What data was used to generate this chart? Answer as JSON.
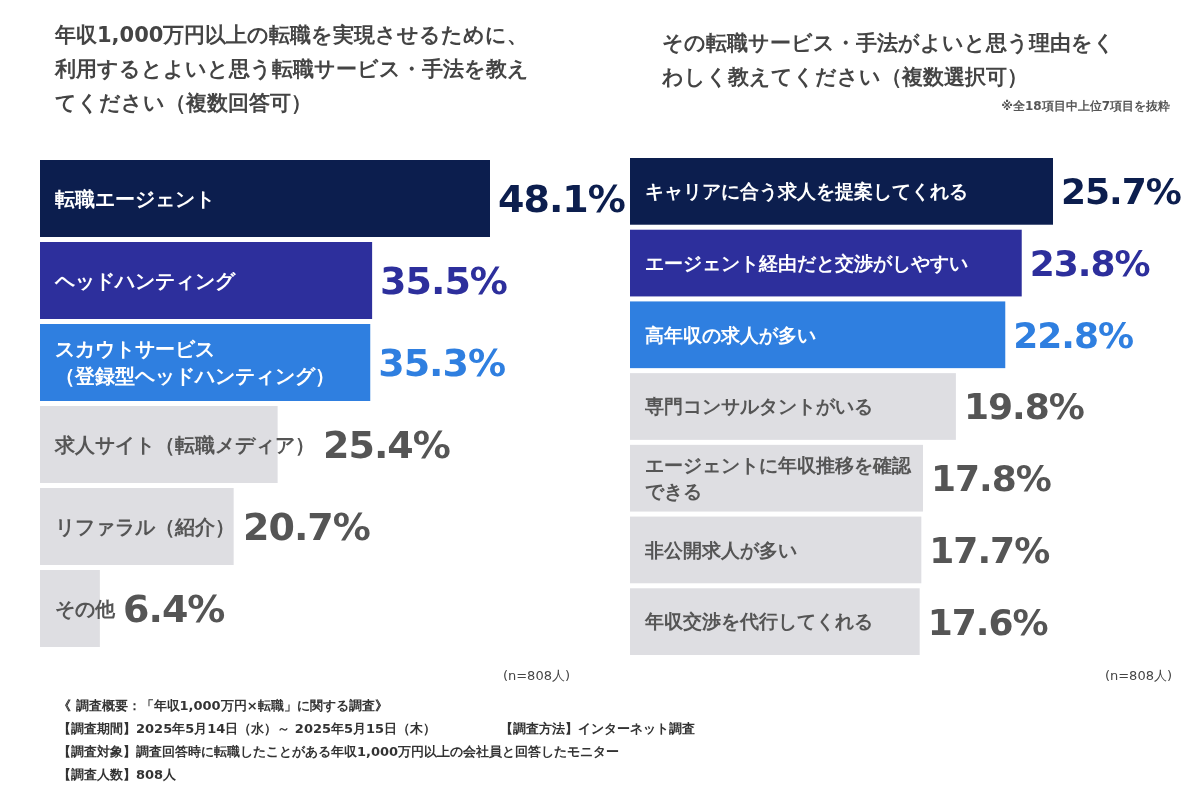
{
  "chart_data": [
    {
      "type": "bar",
      "orientation": "horizontal",
      "title": "年収1,000万円以上の転職を実現させるために、利用するとよいと思う転職サービス・手法を教えてください（複数回答可）",
      "categories": [
        "転職エージェント",
        "ヘッドハンティング",
        "スカウトサービス（登録型ヘッドハンティング）",
        "求人サイト（転職メディア）",
        "リファラル（紹介）",
        "その他"
      ],
      "values": [
        48.1,
        35.5,
        35.3,
        25.4,
        20.7,
        6.4
      ],
      "colors": [
        "#0c1e4e",
        "#2d2f9c",
        "#2f7fe0",
        "#dedee2",
        "#dedee2",
        "#dedee2"
      ],
      "data_labels": true,
      "value_labels": [
        "48.1%",
        "35.5%",
        "35.3%",
        "25.4%",
        "20.7%",
        "6.4%"
      ],
      "annotations": [
        "(n=808人)",
        "《 調査概要：「年収1,000万円×転職」に関する調査》",
        "【調査期間】2025年5月14日（水）～ 2025年5月15日（木）",
        "【調査方法】インターネット調査",
        "【調査対象】調査回答時に転職したことがある年収1,000万円以上の会社員と回答したモニター",
        "【調査人数】808人"
      ]
    },
    {
      "type": "bar",
      "orientation": "horizontal",
      "title": "その転職サービス・手法がよいと思う理由をくわしく教えてください（複数選択可）",
      "subtitle": "※全18項目中上位7項目を抜粋",
      "categories": [
        "キャリアに合う求人を提案してくれる",
        "エージェント経由だと交渉がしやすい",
        "高年収の求人が多い",
        "専門コンサルタントがいる",
        "エージェントに年収推移を確認できる",
        "非公開求人が多い",
        "年収交渉を代行してくれる"
      ],
      "values": [
        25.7,
        23.8,
        22.8,
        19.8,
        17.8,
        17.7,
        17.6
      ],
      "colors": [
        "#0c1e4e",
        "#2d2f9c",
        "#2f7fe0",
        "#dedee2",
        "#dedee2",
        "#dedee2",
        "#dedee2"
      ],
      "data_labels": true,
      "value_labels": [
        "25.7%",
        "23.8%",
        "22.8%",
        "19.8%",
        "17.8%",
        "17.7%",
        "17.6%"
      ],
      "annotations": [
        "(n=808人)"
      ]
    }
  ]
}
